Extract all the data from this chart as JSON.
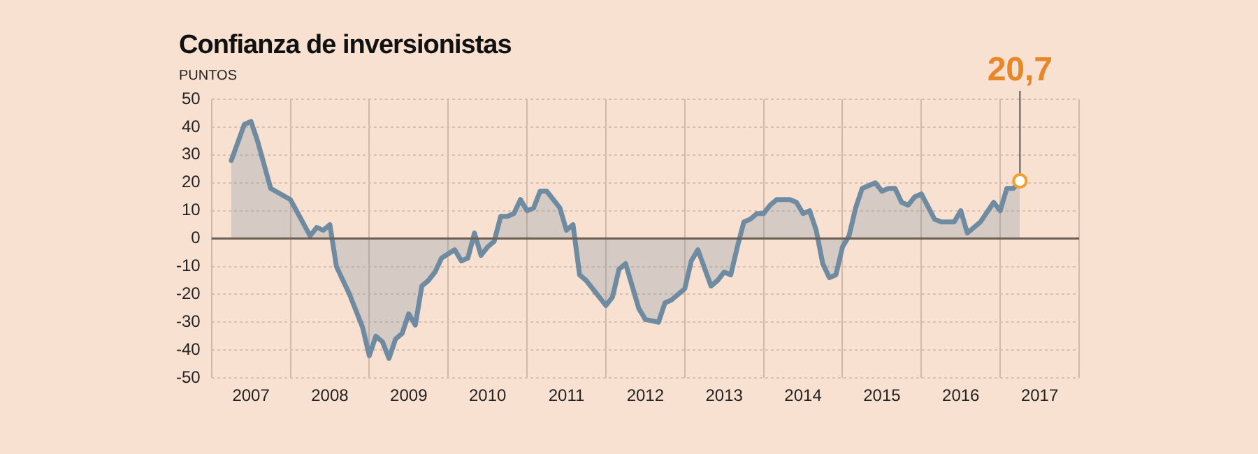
{
  "chart_data": {
    "type": "area",
    "title": "Confianza de inversionistas",
    "ylabel": "PUNTOS",
    "x": [
      "2007-04",
      "2007-06",
      "2007-07",
      "2007-08",
      "2007-10",
      "2008-01",
      "2008-04",
      "2008-05",
      "2008-06",
      "2008-07",
      "2008-08",
      "2008-10",
      "2008-12",
      "2009-01",
      "2009-02",
      "2009-03",
      "2009-04",
      "2009-05",
      "2009-06",
      "2009-07",
      "2009-08",
      "2009-09",
      "2009-10",
      "2009-11",
      "2009-12",
      "2010-02",
      "2010-03",
      "2010-04",
      "2010-05",
      "2010-06",
      "2010-07",
      "2010-08",
      "2010-09",
      "2010-10",
      "2010-11",
      "2010-12",
      "2011-01",
      "2011-02",
      "2011-03",
      "2011-04",
      "2011-06",
      "2011-07",
      "2011-08",
      "2011-09",
      "2011-10",
      "2012-01",
      "2012-02",
      "2012-03",
      "2012-04",
      "2012-06",
      "2012-07",
      "2012-09",
      "2012-10",
      "2012-11",
      "2013-01",
      "2013-02",
      "2013-03",
      "2013-05",
      "2013-06",
      "2013-07",
      "2013-08",
      "2013-09",
      "2013-10",
      "2013-11",
      "2013-12",
      "2014-01",
      "2014-02",
      "2014-03",
      "2014-05",
      "2014-06",
      "2014-07",
      "2014-08",
      "2014-09",
      "2014-10",
      "2014-11",
      "2014-12",
      "2015-01",
      "2015-02",
      "2015-03",
      "2015-04",
      "2015-06",
      "2015-07",
      "2015-08",
      "2015-09",
      "2015-10",
      "2015-11",
      "2015-12",
      "2016-01",
      "2016-03",
      "2016-04",
      "2016-06",
      "2016-07",
      "2016-08",
      "2016-09",
      "2016-10",
      "2016-12",
      "2017-01",
      "2017-02",
      "2017-03",
      "2017-04"
    ],
    "series": [
      {
        "color": "#6f8ba1",
        "values": [
          28,
          41,
          42,
          35,
          18,
          14,
          1,
          4,
          3,
          5,
          -10,
          -20,
          -32,
          -42,
          -35,
          -37,
          -43,
          -36,
          -34,
          -27,
          -31,
          -17,
          -15,
          -12,
          -7,
          -4,
          -8,
          -7,
          2,
          -6,
          -3,
          -1,
          8,
          8,
          9,
          14,
          10,
          11,
          17,
          17,
          11,
          3,
          5,
          -13,
          -15,
          -24,
          -21,
          -11,
          -9,
          -25,
          -29,
          -30,
          -23,
          -22,
          -18,
          -8,
          -4,
          -17,
          -15,
          -12,
          -13,
          -3,
          6,
          7,
          9,
          9,
          12,
          14,
          14,
          13,
          9,
          10,
          3,
          -9,
          -14,
          -13,
          -3,
          1,
          11,
          18,
          20,
          17,
          18,
          18,
          13,
          12,
          15,
          16,
          7,
          6,
          6,
          10,
          2,
          4,
          6,
          13,
          10,
          18,
          18,
          20.7
        ]
      }
    ],
    "xlim": [
      "2007-01",
      "2018-01"
    ],
    "xticks": [
      {
        "value": "2007",
        "label": null
      },
      {
        "value": "2007-07",
        "label": "2007"
      },
      {
        "value": "2008",
        "label": null
      },
      {
        "value": "2008-07",
        "label": "2008"
      },
      {
        "value": "2009",
        "label": null
      },
      {
        "value": "2009-07",
        "label": "2009"
      },
      {
        "value": "2010",
        "label": null
      },
      {
        "value": "2010-07",
        "label": "2010"
      },
      {
        "value": "2011",
        "label": null
      },
      {
        "value": "2011-07",
        "label": "2011"
      },
      {
        "value": "2012",
        "label": null
      },
      {
        "value": "2012-07",
        "label": "2012"
      },
      {
        "value": "2013",
        "label": null
      },
      {
        "value": "2013-07",
        "label": "2013"
      },
      {
        "value": "2014",
        "label": null
      },
      {
        "value": "2014-07",
        "label": "2014"
      },
      {
        "value": "2015",
        "label": null
      },
      {
        "value": "2015-07",
        "label": "2015"
      },
      {
        "value": "2016",
        "label": null
      },
      {
        "value": "2016-07",
        "label": "2016"
      },
      {
        "value": "2017",
        "label": null
      },
      {
        "value": "2017-07",
        "label": "2017"
      },
      {
        "value": "2018",
        "label": null
      }
    ],
    "ylim": [
      -50,
      50
    ],
    "yticks": [
      -50,
      -40,
      -30,
      -20,
      -10,
      0,
      10,
      20,
      30,
      40,
      50
    ],
    "grid": true,
    "legend": false,
    "ref_lines": [
      {
        "axis": "y",
        "value": 0,
        "color": "#6b5f55"
      }
    ],
    "annotations": [
      {
        "text": "20,7",
        "x": "2017-04",
        "y": 20.7
      }
    ]
  }
}
